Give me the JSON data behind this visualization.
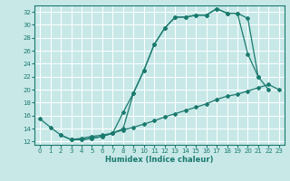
{
  "xlabel": "Humidex (Indice chaleur)",
  "background_color": "#c8e8e8",
  "grid_color": "#ffffff",
  "line_color": "#1a7a6e",
  "x_ticks": [
    0,
    1,
    2,
    3,
    4,
    5,
    6,
    7,
    8,
    9,
    10,
    11,
    12,
    13,
    14,
    15,
    16,
    17,
    18,
    19,
    20,
    21,
    22,
    23
  ],
  "ylim": [
    11.5,
    33.0
  ],
  "xlim": [
    -0.5,
    23.5
  ],
  "y_ticks": [
    12,
    14,
    16,
    18,
    20,
    22,
    24,
    26,
    28,
    30,
    32
  ],
  "line_top_x": [
    0,
    1,
    2,
    3,
    4,
    5,
    6,
    7,
    8,
    9,
    10,
    11,
    12,
    13,
    14,
    15,
    16,
    17,
    18,
    19,
    20,
    21,
    22
  ],
  "line_top_y": [
    15.5,
    14.2,
    13.0,
    12.3,
    12.3,
    12.5,
    12.8,
    13.3,
    14.0,
    19.5,
    23.0,
    27.0,
    29.5,
    31.2,
    31.2,
    31.5,
    31.5,
    32.5,
    31.8,
    31.8,
    31.0,
    22.0,
    20.0
  ],
  "line_mid_x": [
    3,
    4,
    5,
    6,
    7,
    8,
    9,
    10,
    11,
    12,
    13,
    14,
    15,
    16,
    17,
    18,
    19,
    20,
    21
  ],
  "line_mid_y": [
    12.3,
    12.3,
    12.5,
    12.8,
    13.3,
    16.5,
    19.5,
    23.0,
    27.0,
    29.5,
    31.2,
    31.2,
    31.5,
    31.5,
    32.5,
    31.8,
    31.8,
    25.5,
    22.0
  ],
  "line_bot_x": [
    2,
    3,
    4,
    5,
    6,
    7,
    8,
    9,
    10,
    11,
    12,
    13,
    14,
    15,
    16,
    17,
    18,
    19,
    20,
    21,
    22,
    23
  ],
  "line_bot_y": [
    13.0,
    12.3,
    12.5,
    12.8,
    13.0,
    13.3,
    13.8,
    14.2,
    14.7,
    15.2,
    15.8,
    16.3,
    16.8,
    17.3,
    17.8,
    18.5,
    19.0,
    19.3,
    19.8,
    20.3,
    20.8,
    20.0
  ]
}
